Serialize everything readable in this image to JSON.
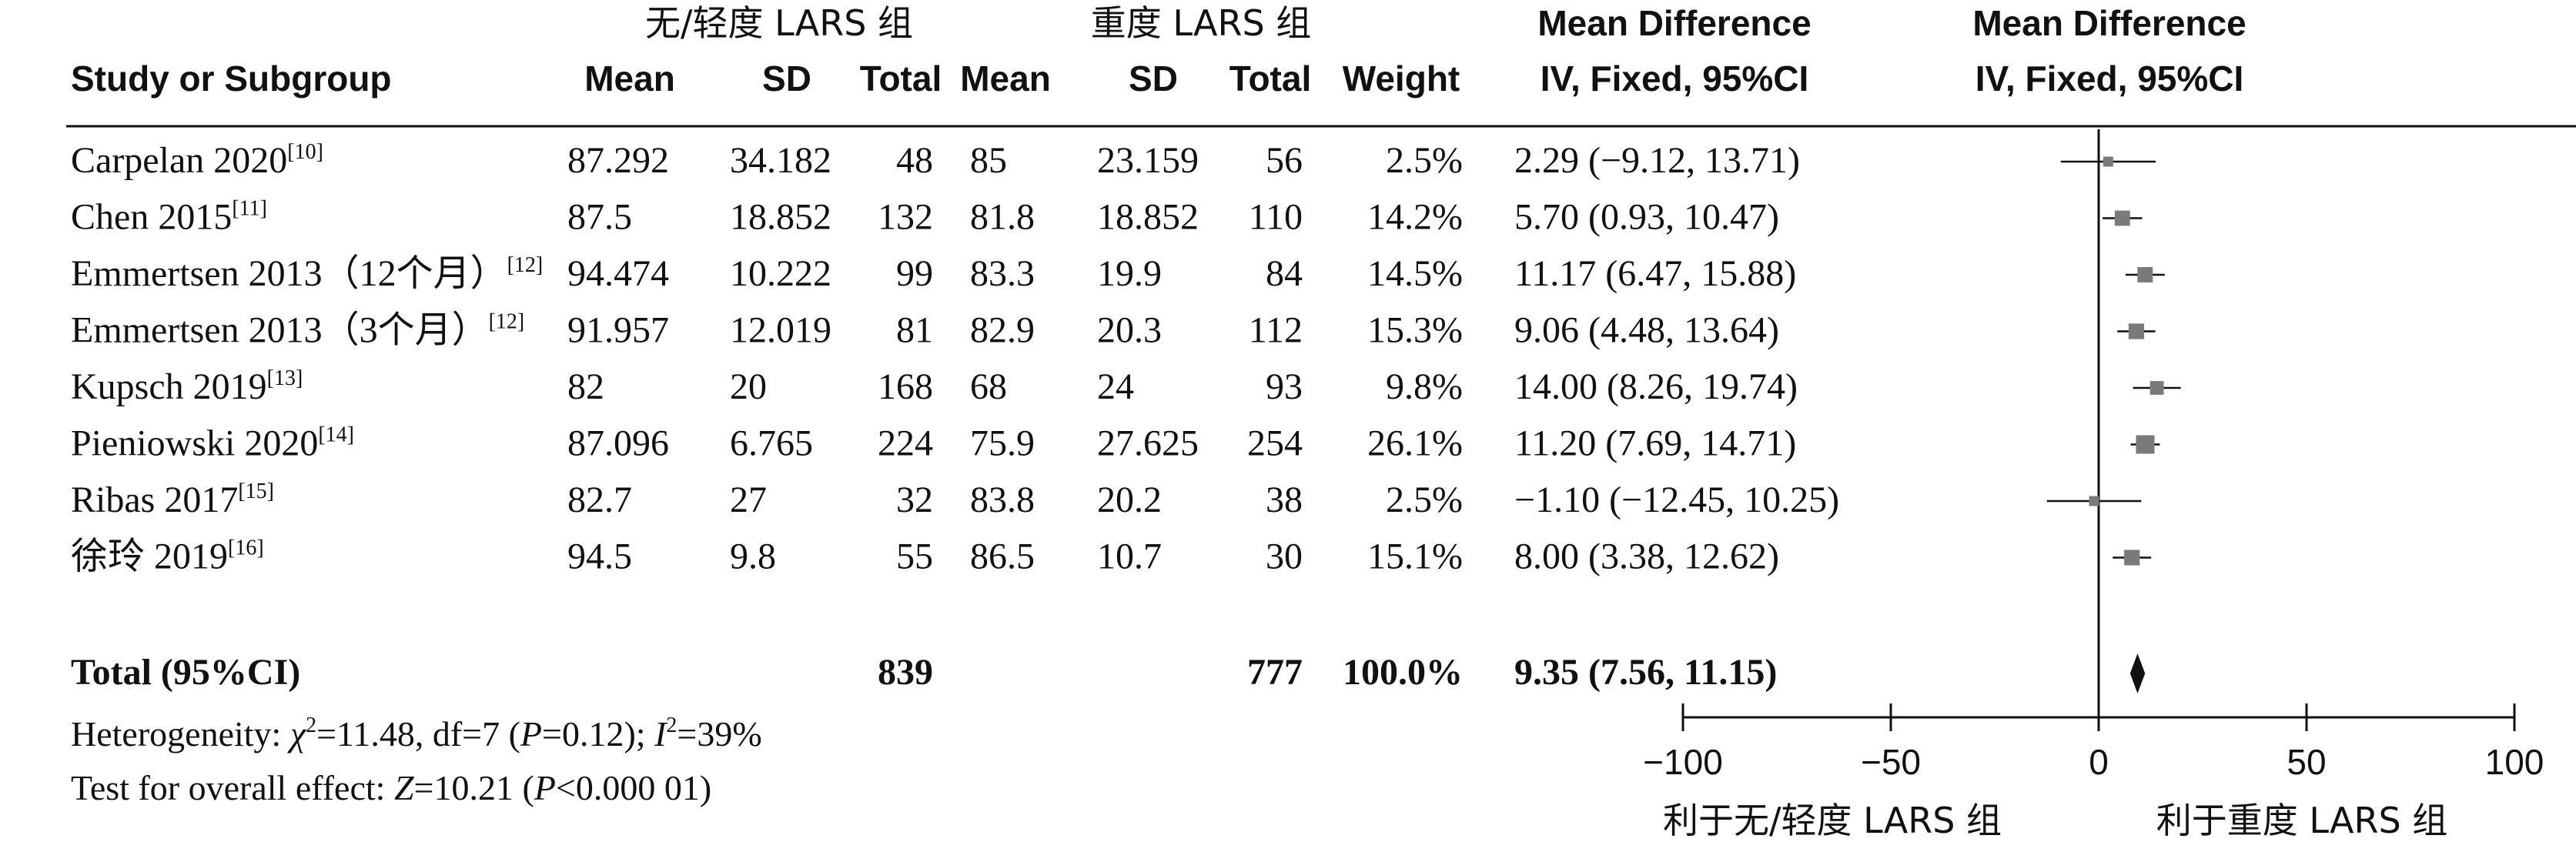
{
  "header": {
    "group1": "无/轻度 LARS 组",
    "group2": "重度 LARS 组",
    "mean_diff_1": "Mean Difference",
    "mean_diff_2": "Mean Difference",
    "study": "Study or Subgroup",
    "mean1": "Mean",
    "sd1": "SD",
    "total1": "Total",
    "mean2": "Mean",
    "sd2": "SD",
    "total2": "Total",
    "weight": "Weight",
    "ci_1": "IV, Fixed, 95%CI",
    "ci_2": "IV, Fixed, 95%CI"
  },
  "studies": [
    {
      "name": "Carpelan 2020",
      "ref": "[10]",
      "mean1": "87.292",
      "sd1": "34.182",
      "total1": "48",
      "mean2": "85",
      "sd2": "23.159",
      "total2": "56",
      "weight": "2.5%",
      "ci_text": "2.29 (−9.12, 13.71)"
    },
    {
      "name": "Chen 2015",
      "ref": "[11]",
      "mean1": "87.5",
      "sd1": "18.852",
      "total1": "132",
      "mean2": "81.8",
      "sd2": "18.852",
      "total2": "110",
      "weight": "14.2%",
      "ci_text": "5.70 (0.93, 10.47)"
    },
    {
      "name": "Emmertsen 2013（12个月）",
      "ref": "[12]",
      "mean1": "94.474",
      "sd1": "10.222",
      "total1": "99",
      "mean2": "83.3",
      "sd2": "19.9",
      "total2": "84",
      "weight": "14.5%",
      "ci_text": "11.17 (6.47, 15.88)"
    },
    {
      "name": "Emmertsen 2013（3个月）",
      "ref": "[12]",
      "mean1": "91.957",
      "sd1": "12.019",
      "total1": "81",
      "mean2": "82.9",
      "sd2": "20.3",
      "total2": "112",
      "weight": "15.3%",
      "ci_text": "9.06 (4.48, 13.64)"
    },
    {
      "name": "Kupsch 2019",
      "ref": "[13]",
      "mean1": "82",
      "sd1": "20",
      "total1": "168",
      "mean2": "68",
      "sd2": "24",
      "total2": "93",
      "weight": "9.8%",
      "ci_text": "14.00 (8.26, 19.74)"
    },
    {
      "name": "Pieniowski 2020",
      "ref": "[14]",
      "mean1": "87.096",
      "sd1": "6.765",
      "total1": "224",
      "mean2": "75.9",
      "sd2": "27.625",
      "total2": "254",
      "weight": "26.1%",
      "ci_text": "11.20 (7.69, 14.71)"
    },
    {
      "name": "Ribas 2017",
      "ref": "[15]",
      "mean1": "82.7",
      "sd1": "27",
      "total1": "32",
      "mean2": "83.8",
      "sd2": "20.2",
      "total2": "38",
      "weight": "2.5%",
      "ci_text": "−1.10 (−12.45, 10.25)"
    },
    {
      "name": "徐玲 2019",
      "ref": "[16]",
      "mean1": "94.5",
      "sd1": "9.8",
      "total1": "55",
      "mean2": "86.5",
      "sd2": "10.7",
      "total2": "30",
      "weight": "15.1%",
      "ci_text": "8.00 (3.38, 12.62)"
    }
  ],
  "total": {
    "name": "Total (95%CI)",
    "total1": "839",
    "total2": "777",
    "weight": "100.0%",
    "ci_text": "9.35 (7.56, 11.15)"
  },
  "heterogeneity": {
    "label": "Heterogeneity: ",
    "chi": "χ",
    "chi_val": "=11.48, df=7 (",
    "p": "P",
    "p_val": "=0.12); ",
    "i": "I",
    "i_val": "=39%"
  },
  "overall": {
    "label": "Test for overall effect: ",
    "z": "Z",
    "z_val": "=10.21 (",
    "p": "P",
    "p_val": "<0.000 01)"
  },
  "axis": {
    "ticks": [
      "−100",
      "−50",
      "0",
      "50",
      "100"
    ],
    "favors_left": "利于无/轻度 LARS 组",
    "favors_right": "利于重度 LARS 组"
  },
  "chart_data": {
    "type": "forest",
    "xlim": [
      -100,
      100
    ],
    "xticks": [
      -100,
      -50,
      0,
      50,
      100
    ],
    "estimates": [
      {
        "study": "Carpelan 2020",
        "md": 2.29,
        "lo": -9.12,
        "hi": 13.71,
        "weight": 2.5
      },
      {
        "study": "Chen 2015",
        "md": 5.7,
        "lo": 0.93,
        "hi": 10.47,
        "weight": 14.2
      },
      {
        "study": "Emmertsen 2013（12个月）",
        "md": 11.17,
        "lo": 6.47,
        "hi": 15.88,
        "weight": 14.5
      },
      {
        "study": "Emmertsen 2013（3个月）",
        "md": 9.06,
        "lo": 4.48,
        "hi": 13.64,
        "weight": 15.3
      },
      {
        "study": "Kupsch 2019",
        "md": 14.0,
        "lo": 8.26,
        "hi": 19.74,
        "weight": 9.8
      },
      {
        "study": "Pieniowski 2020",
        "md": 11.2,
        "lo": 7.69,
        "hi": 14.71,
        "weight": 26.1
      },
      {
        "study": "Ribas 2017",
        "md": -1.1,
        "lo": -12.45,
        "hi": 10.25,
        "weight": 2.5
      },
      {
        "study": "徐玲 2019",
        "md": 8.0,
        "lo": 3.38,
        "hi": 12.62,
        "weight": 15.1
      }
    ],
    "pooled": {
      "md": 9.35,
      "lo": 7.56,
      "hi": 11.15,
      "weight": 100.0
    }
  }
}
